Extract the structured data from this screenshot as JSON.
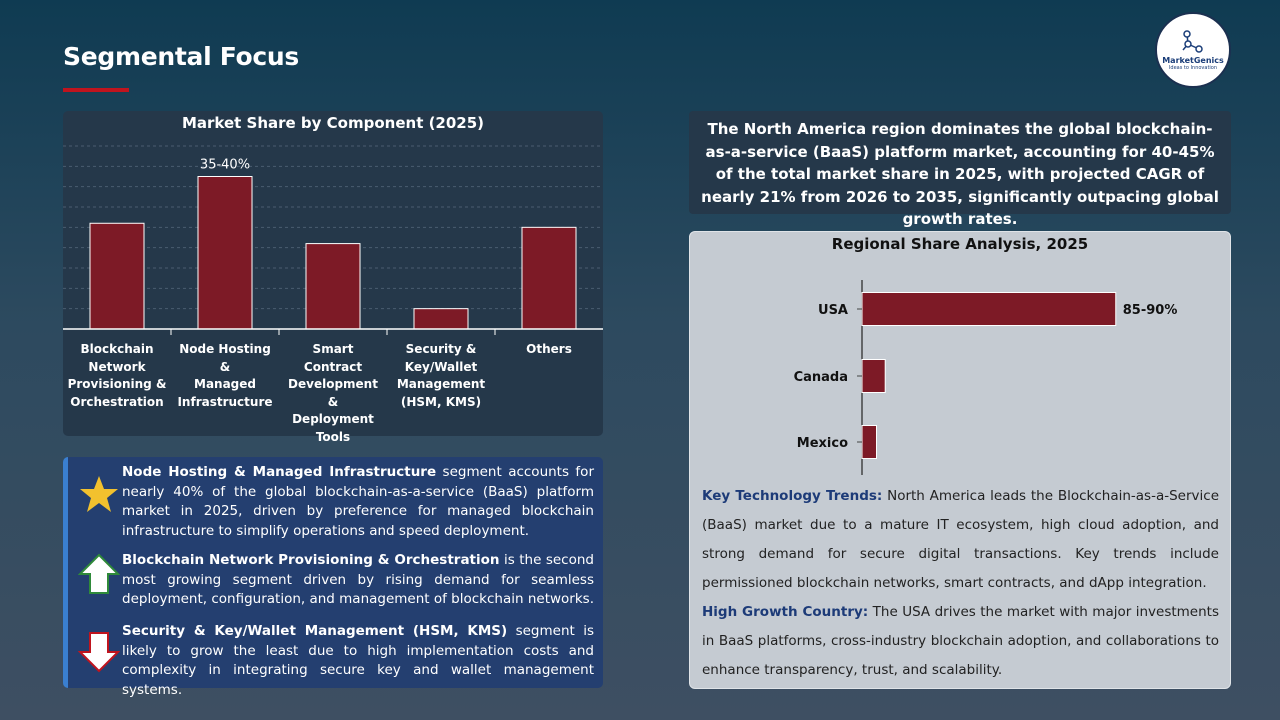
{
  "header": {
    "title": "Segmental Focus"
  },
  "logo": {
    "brand": "MarketGenics",
    "tagline": "Ideas to Innovation"
  },
  "chart_data": [
    {
      "type": "bar",
      "title": "Market Share by Component (2025)",
      "categories": [
        "Blockchain Network Provisioning & Orchestration",
        "Node Hosting & Managed Infrastructure",
        "Smart Contract Development & Deployment Tools",
        "Security & Key/Wallet Management (HSM, KMS)",
        "Others"
      ],
      "category_lines": [
        [
          "Blockchain",
          "Network",
          "Provisioning &",
          "Orchestration"
        ],
        [
          "Node Hosting &",
          "Managed",
          "Infrastructure"
        ],
        [
          "Smart Contract",
          "Development &",
          "Deployment",
          "Tools"
        ],
        [
          "Security &",
          "Key/Wallet",
          "Management",
          "(HSM, KMS)"
        ],
        [
          "Others"
        ]
      ],
      "values": [
        26,
        37.5,
        21,
        5,
        25
      ],
      "data_labels": [
        "",
        "35-40%",
        "",
        "",
        ""
      ],
      "ylim": [
        0,
        45
      ],
      "grid": true,
      "bar_color": "#7d1a26"
    },
    {
      "type": "bar",
      "orientation": "horizontal",
      "title": "Regional Share Analysis, 2025",
      "categories": [
        "USA",
        "Canada",
        "Mexico"
      ],
      "values": [
        87.5,
        8,
        5
      ],
      "data_labels": [
        "85-90%",
        "",
        ""
      ],
      "xlim": [
        0,
        100
      ],
      "bar_color": "#7d1a26"
    }
  ],
  "highlights": [
    {
      "icon": "star-icon",
      "bold": "Node Hosting & Managed Infrastructure",
      "text": " segment accounts for nearly 40% of the global blockchain-as-a-service (BaaS) platform market in 2025, driven by preference for managed blockchain infrastructure to simplify operations and speed deployment."
    },
    {
      "icon": "arrow-up-icon",
      "bold": "Blockchain Network Provisioning & Orchestration",
      "text": " is the second most growing segment driven by rising demand for seamless deployment, configuration, and management of blockchain networks."
    },
    {
      "icon": "arrow-down-icon",
      "bold": "Security & Key/Wallet Management (HSM, KMS)",
      "text": " segment is likely to grow the least due to high implementation costs and complexity in integrating secure key and wallet management systems."
    }
  ],
  "summary": "The North America region dominates the global blockchain-as-a-service (BaaS) platform market, accounting for 40-45% of the total market share in 2025, with projected CAGR of nearly 21% from 2026 to 2035, significantly outpacing global growth rates.",
  "region_notes": {
    "trends_label": "Key Technology Trends:",
    "trends_text": " North America leads the Blockchain-as-a-Service (BaaS) market due to a mature IT ecosystem, high cloud adoption, and strong demand for secure digital transactions. Key trends include permissioned blockchain networks, smart contracts, and dApp integration.",
    "growth_label": "High Growth Country:",
    "growth_text": " The USA drives the market with major investments in BaaS platforms, cross-industry blockchain adoption, and collaborations to enhance transparency, trust, and scalability."
  },
  "colors": {
    "accent": "#c0141e",
    "bar": "#7d1a26",
    "panel": "#25384a",
    "info_bg": "#243f70",
    "highlight_label": "#1d3b78"
  }
}
